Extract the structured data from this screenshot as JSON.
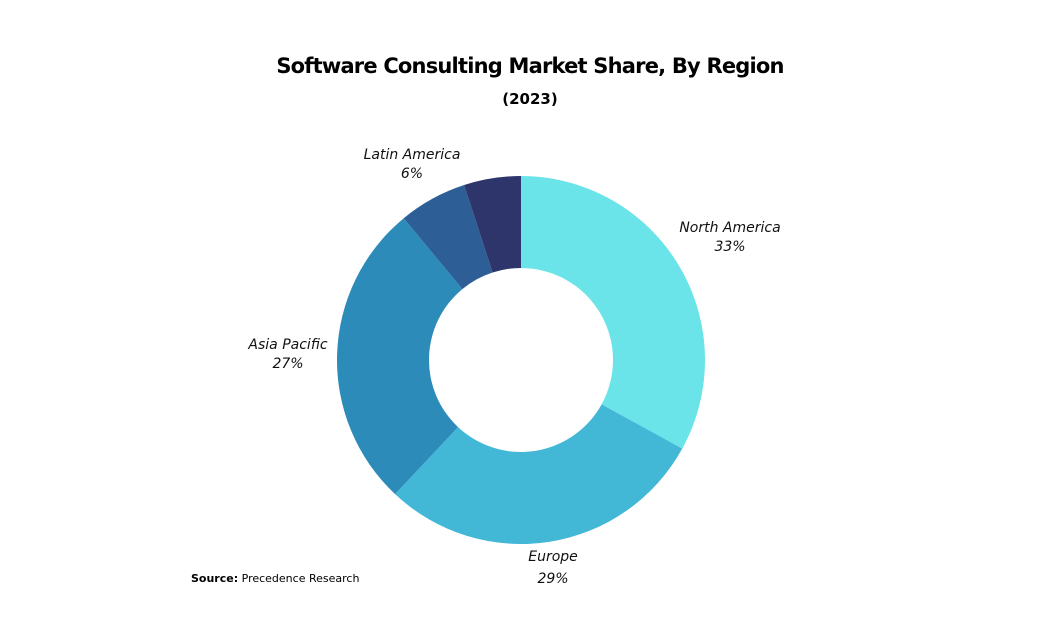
{
  "chart_data": {
    "type": "pie",
    "style": "donut",
    "title": "Software Consulting Market Share, By Region",
    "subtitle": "(2023)",
    "unit": "%",
    "slices": [
      {
        "label": "North America",
        "value": 33,
        "value_label": "33%",
        "color": "#6ae4e8"
      },
      {
        "label": "Europe",
        "value": 29,
        "value_label": "29%",
        "color": "#42b7d6"
      },
      {
        "label": "Asia Pacific",
        "value": 27,
        "value_label": "27%",
        "color": "#2d8bba"
      },
      {
        "label": "Latin America",
        "value": 6,
        "value_label": "6%",
        "color": "#2d5f96"
      },
      {
        "label": "",
        "value": 5,
        "value_label": "",
        "color": "#2e356b"
      }
    ],
    "legend": "none"
  },
  "source": {
    "prefix": "Source:",
    "text": "Precedence Research"
  }
}
